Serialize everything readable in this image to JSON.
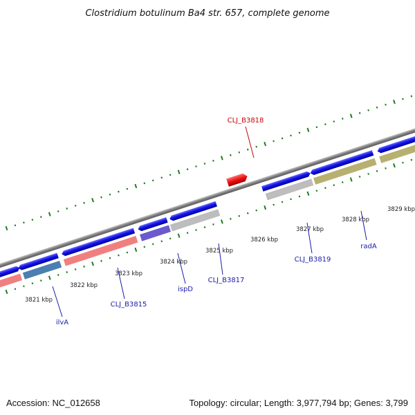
{
  "title": "Clostridium botulinum Ba4 str. 657, complete genome",
  "footer": {
    "accession": "Accession: NC_012658",
    "summary": "Topology: circular; Length: 3,977,794 bp; Genes: 3,799"
  },
  "colors": {
    "backbone": "#8a8a8a",
    "tick": "#1f7a1f",
    "label_blue": "#1a1aa8",
    "label_red": "#cc0000",
    "arrow_blue": "#1414e6",
    "arrow_red": "#ee1111"
  },
  "kbp_labels": [
    {
      "text": "3821 kbp"
    },
    {
      "text": "3822 kbp"
    },
    {
      "text": "3823 kbp"
    },
    {
      "text": "3824 kbp"
    },
    {
      "text": "3825 kbp"
    },
    {
      "text": "3826 kbp"
    },
    {
      "text": "3827 kbp"
    },
    {
      "text": "3828 kbp"
    },
    {
      "text": "3829 kbp"
    }
  ],
  "gene_labels": [
    {
      "text": "CLJ_B3818",
      "color": "red"
    },
    {
      "text": "ilvA",
      "color": "blue"
    },
    {
      "text": "CLJ_B3815",
      "color": "blue"
    },
    {
      "text": "ispD",
      "color": "blue"
    },
    {
      "text": "CLJ_B3817",
      "color": "blue"
    },
    {
      "text": "CLJ_B3819",
      "color": "blue"
    },
    {
      "text": "radA",
      "color": "blue"
    }
  ],
  "features": [
    {
      "name": "feature-pink-left",
      "color": "#f08080"
    },
    {
      "name": "feature-ilvA",
      "color": "#4a7fb0"
    },
    {
      "name": "feature-CLJ_B3815",
      "color": "#f08080"
    },
    {
      "name": "feature-ispD",
      "color": "#6a5acd"
    },
    {
      "name": "feature-CLJ_B3817",
      "color": "#bdbdbd"
    },
    {
      "name": "feature-CLJ_B3819",
      "color": "#bdbdbd"
    },
    {
      "name": "feature-radA",
      "color": "#b8b070"
    },
    {
      "name": "feature-right",
      "color": "#b8b070"
    }
  ]
}
